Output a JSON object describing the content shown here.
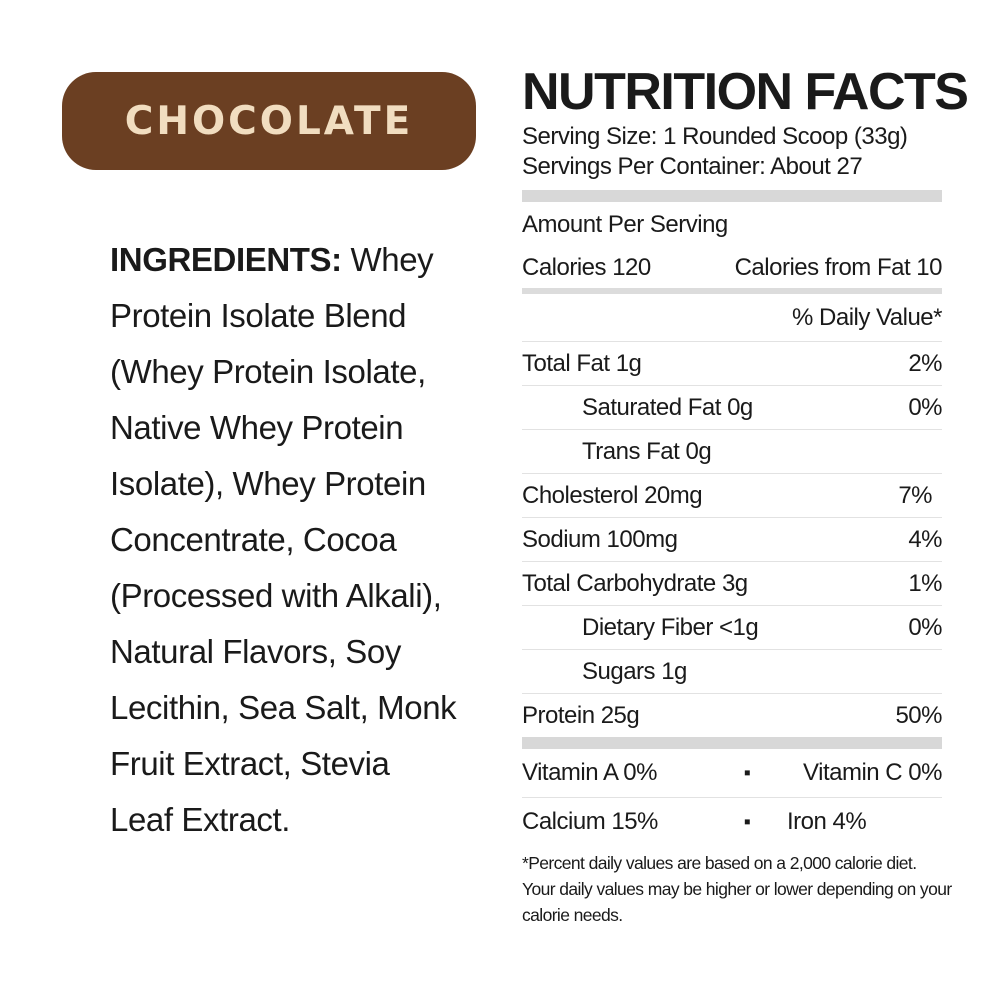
{
  "flavor": {
    "name": "CHOCOLATE",
    "pill_color": "#6b3f22",
    "text_color": "#f1ddc0"
  },
  "ingredients": {
    "label": "INGREDIENTS:",
    "text": "Whey Protein Isolate Blend (Whey Protein Isolate, Native Whey Protein Isolate), Whey Protein Concentrate, Cocoa (Processed with Alkali), Natural Flavors, Soy Lecithin, Sea Salt, Monk Fruit Extract, Stevia Leaf Extract."
  },
  "nutrition": {
    "title": "NUTRITION FACTS",
    "serving_size": "Serving Size: 1 Rounded Scoop (33g)",
    "servings_per_container": "Servings Per Container: About 27",
    "amount_per_serving": "Amount Per Serving",
    "calories": "Calories 120",
    "calories_from_fat": "Calories from Fat 10",
    "daily_value_header": "% Daily Value*",
    "rows": [
      {
        "name": "Total Fat 1g",
        "dv": "2%"
      },
      {
        "name": "Saturated Fat 0g",
        "dv": "0%"
      },
      {
        "name": "Trans Fat 0g",
        "dv": ""
      },
      {
        "name": "Cholesterol 20mg",
        "dv": "7%"
      },
      {
        "name": "Sodium 100mg",
        "dv": "4%"
      },
      {
        "name": "Total Carbohydrate 3g",
        "dv": "1%"
      },
      {
        "name": "Dietary Fiber <1g",
        "dv": "0%"
      },
      {
        "name": "Sugars 1g",
        "dv": ""
      },
      {
        "name": "Protein 25g",
        "dv": "50%"
      }
    ],
    "vitamins": [
      {
        "left": "Vitamin A 0%",
        "sep": "▪",
        "right": "Vitamin C 0%"
      },
      {
        "left": "Calcium 15%",
        "sep": "▪",
        "right": "Iron 4%"
      }
    ],
    "footnote": "*Percent daily values are based on a 2,000 calorie diet. Your daily values may be higher or lower depending on your calorie needs."
  }
}
